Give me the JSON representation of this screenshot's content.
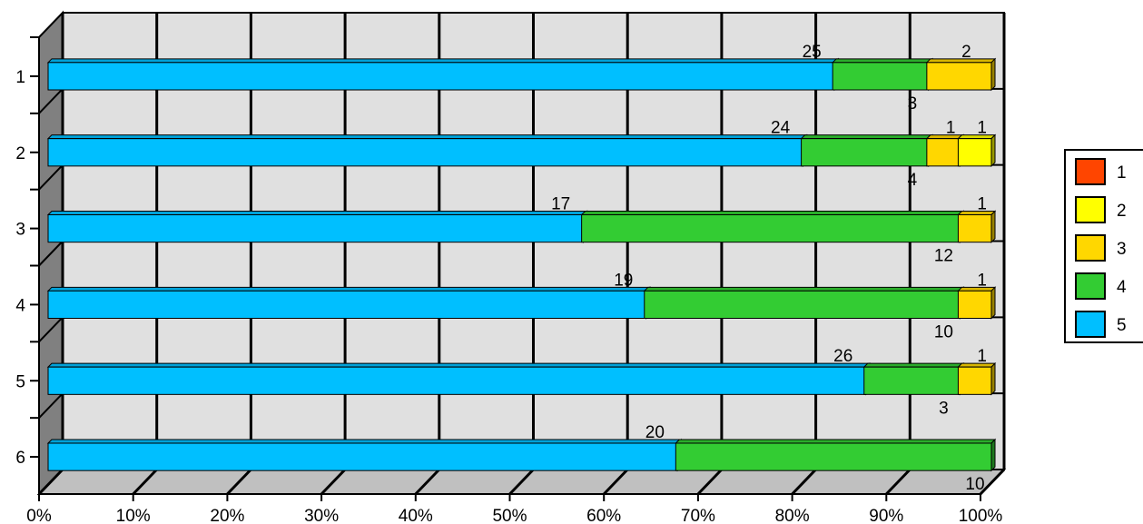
{
  "chart_data": {
    "type": "bar",
    "orientation": "horizontal",
    "stacked": "percent",
    "style": "3d",
    "categories": [
      "1",
      "2",
      "3",
      "4",
      "5",
      "6"
    ],
    "series": [
      {
        "name": "1",
        "color": "#ff4500",
        "values": [
          0,
          0,
          0,
          0,
          0,
          0
        ]
      },
      {
        "name": "2",
        "color": "#ffff00",
        "values": [
          0,
          1,
          0,
          0,
          0,
          0
        ]
      },
      {
        "name": "3",
        "color": "#ffd700",
        "values": [
          2,
          1,
          1,
          1,
          1,
          0
        ]
      },
      {
        "name": "4",
        "color": "#33cc33",
        "values": [
          3,
          4,
          12,
          10,
          3,
          10
        ]
      },
      {
        "name": "5",
        "color": "#00bfff",
        "values": [
          25,
          24,
          17,
          19,
          26,
          20
        ]
      }
    ],
    "xlim": [
      0,
      100
    ],
    "x_ticks": [
      "0%",
      "10%",
      "20%",
      "30%",
      "40%",
      "50%",
      "60%",
      "70%",
      "80%",
      "90%",
      "100%"
    ],
    "grid": true,
    "legend_position": "right",
    "title": "",
    "xlabel": "",
    "ylabel": ""
  }
}
